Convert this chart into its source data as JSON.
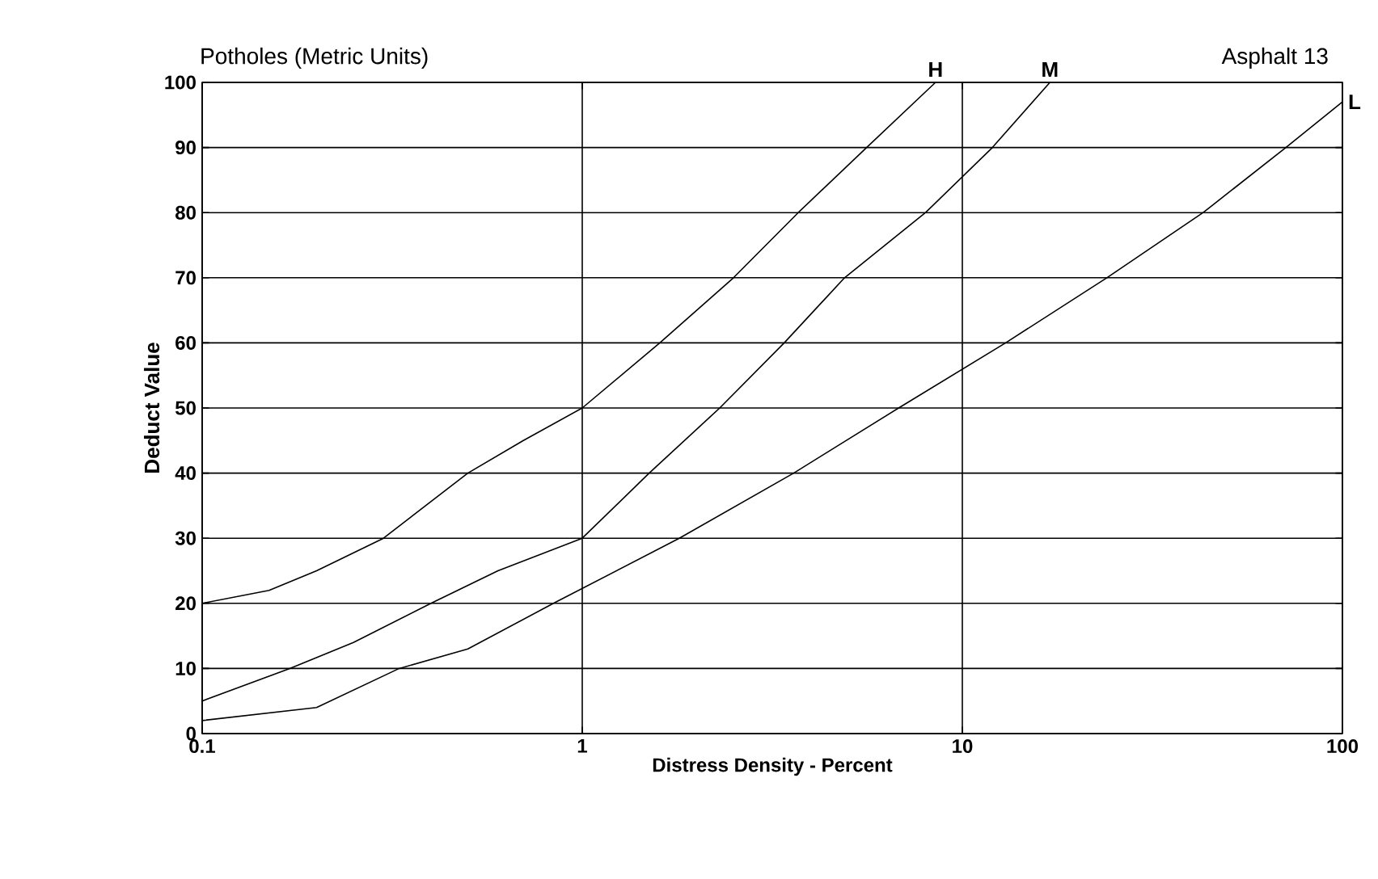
{
  "chart_data": {
    "type": "line",
    "title": "Potholes (Metric Units)",
    "xlabel": "Distress Density - Percent",
    "ylabel": "Deduct Value",
    "annotations": [
      "Asphalt 13"
    ],
    "log": "x",
    "xlim": [
      0.1,
      100
    ],
    "ylim": [
      0,
      100
    ],
    "xticks": [
      0.1,
      1,
      10,
      100
    ],
    "yticks": [
      0,
      10,
      20,
      30,
      40,
      50,
      60,
      70,
      80,
      90,
      100
    ],
    "grid": true,
    "marker": "none",
    "line_style": "solid",
    "series": [
      {
        "name": "H",
        "color": "#000000",
        "x": [
          0.1,
          0.15,
          0.2,
          0.3,
          0.5,
          0.7,
          1,
          1.6,
          2.5,
          3.7,
          5.6,
          8.5
        ],
        "values": [
          20,
          22,
          25,
          30,
          40,
          45,
          50,
          60,
          70,
          80,
          90,
          100
        ]
      },
      {
        "name": "M",
        "color": "#000000",
        "x": [
          0.1,
          0.17,
          0.25,
          0.4,
          0.6,
          1,
          1.5,
          2.3,
          3.4,
          4.9,
          8,
          12,
          17
        ],
        "values": [
          5,
          10,
          14,
          20,
          25,
          30,
          40,
          50,
          60,
          70,
          80,
          90,
          100
        ]
      },
      {
        "name": "L",
        "color": "#000000",
        "x": [
          0.1,
          0.2,
          0.33,
          0.5,
          0.84,
          1.8,
          3.6,
          6.8,
          13,
          24,
          43,
          71,
          100
        ],
        "values": [
          2,
          4,
          10,
          13,
          20,
          30,
          40,
          50,
          60,
          70,
          80,
          90,
          97
        ]
      }
    ]
  }
}
